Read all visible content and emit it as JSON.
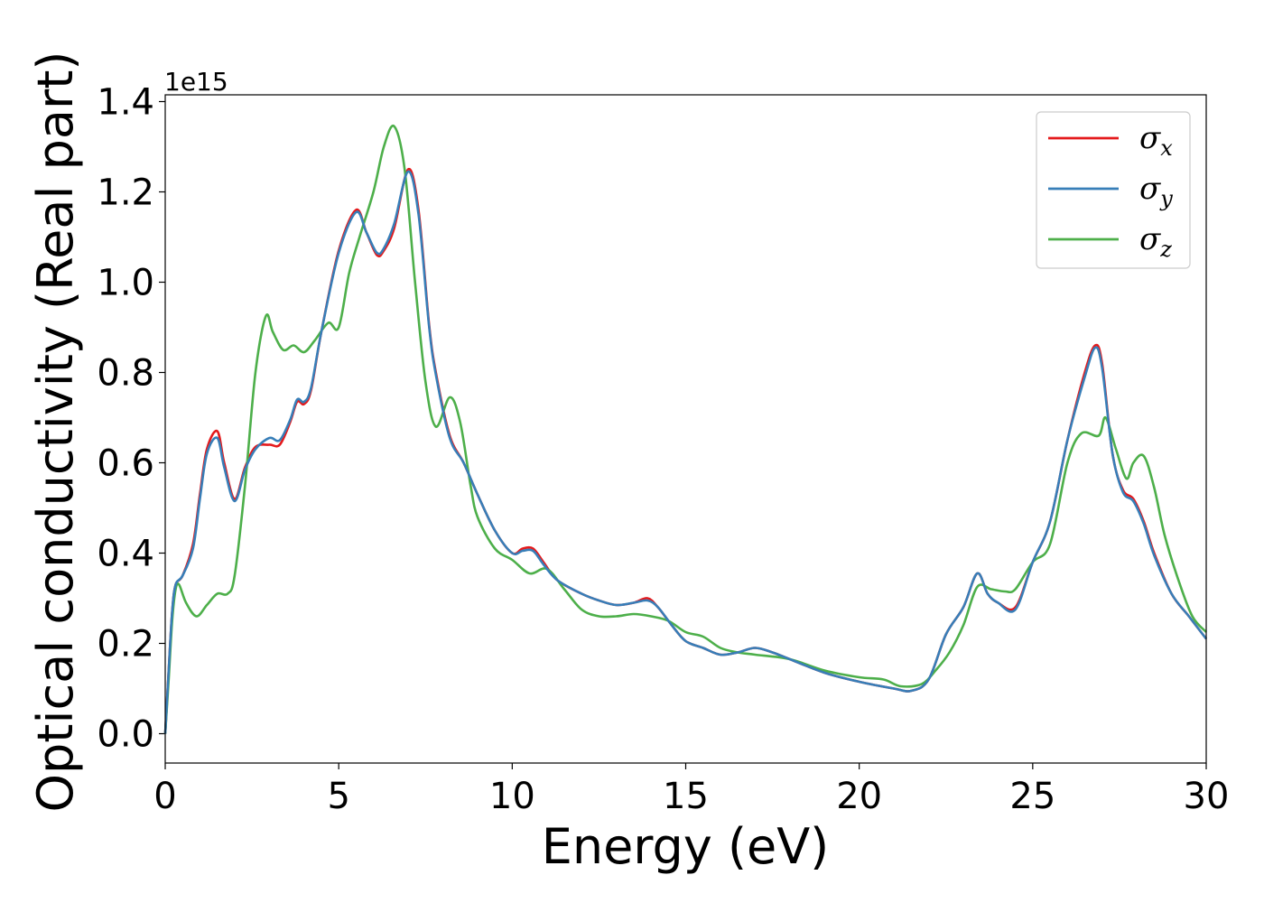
{
  "chart_data": {
    "type": "line",
    "title": "",
    "xlabel": "Energy (eV)",
    "ylabel": "Optical conductivity (Real part)",
    "y_offset_text": "1e15",
    "xlim": [
      0,
      30
    ],
    "ylim": [
      -0.065,
      1.415
    ],
    "xticks": [
      0,
      5,
      10,
      15,
      20,
      25,
      30
    ],
    "xtick_labels": [
      "0",
      "5",
      "10",
      "15",
      "20",
      "25",
      "30"
    ],
    "yticks": [
      0.0,
      0.2,
      0.4,
      0.6,
      0.8,
      1.0,
      1.2,
      1.4
    ],
    "ytick_labels": [
      "0.0",
      "0.2",
      "0.4",
      "0.6",
      "0.8",
      "1.0",
      "1.2",
      "1.4"
    ],
    "grid": false,
    "legend_position": "top-right",
    "series": [
      {
        "name": "σ_x",
        "symbol": "σ",
        "subscript": "x",
        "color": "#e41a1c",
        "x": [
          0,
          0.1,
          0.2,
          0.3,
          0.5,
          0.8,
          1.0,
          1.2,
          1.5,
          1.7,
          2.0,
          2.3,
          2.6,
          3.0,
          3.3,
          3.6,
          3.8,
          4.0,
          4.2,
          4.5,
          5.0,
          5.5,
          5.8,
          6.1,
          6.3,
          6.6,
          7.0,
          7.3,
          7.6,
          7.8,
          8.2,
          8.6,
          9.0,
          9.5,
          10.0,
          10.3,
          10.6,
          10.9,
          11.3,
          12.0,
          12.5,
          13.0,
          13.5,
          13.9,
          14.2,
          14.6,
          15.0,
          15.5,
          16.0,
          16.5,
          17.0,
          17.5,
          18.0,
          19.0,
          20.0,
          21.0,
          21.5,
          22.0,
          22.5,
          23.0,
          23.4,
          23.7,
          24.0,
          24.5,
          25.0,
          25.5,
          26.0,
          26.5,
          26.8,
          27.0,
          27.3,
          27.6,
          27.9,
          28.2,
          28.5,
          29.0,
          29.5,
          30.0
        ],
        "values": [
          0.0,
          0.14,
          0.27,
          0.33,
          0.35,
          0.42,
          0.53,
          0.63,
          0.67,
          0.6,
          0.52,
          0.59,
          0.635,
          0.64,
          0.64,
          0.69,
          0.735,
          0.73,
          0.76,
          0.89,
          1.07,
          1.16,
          1.11,
          1.06,
          1.07,
          1.12,
          1.25,
          1.16,
          0.91,
          0.8,
          0.66,
          0.6,
          0.53,
          0.45,
          0.4,
          0.41,
          0.41,
          0.38,
          0.34,
          0.31,
          0.295,
          0.285,
          0.29,
          0.3,
          0.28,
          0.24,
          0.205,
          0.19,
          0.175,
          0.18,
          0.19,
          0.18,
          0.165,
          0.135,
          0.115,
          0.1,
          0.095,
          0.12,
          0.22,
          0.28,
          0.355,
          0.31,
          0.29,
          0.28,
          0.38,
          0.47,
          0.65,
          0.8,
          0.86,
          0.82,
          0.62,
          0.54,
          0.52,
          0.47,
          0.4,
          0.31,
          0.26,
          0.21
        ]
      },
      {
        "name": "σ_y",
        "symbol": "σ",
        "subscript": "y",
        "color": "#377eb8",
        "x": [
          0,
          0.1,
          0.2,
          0.3,
          0.5,
          0.8,
          1.0,
          1.2,
          1.5,
          1.7,
          2.0,
          2.3,
          2.6,
          3.0,
          3.3,
          3.6,
          3.8,
          4.0,
          4.2,
          4.5,
          5.0,
          5.5,
          5.8,
          6.1,
          6.3,
          6.6,
          7.0,
          7.3,
          7.6,
          7.8,
          8.2,
          8.6,
          9.0,
          9.5,
          10.0,
          10.3,
          10.6,
          10.9,
          11.3,
          12.0,
          12.5,
          13.0,
          13.5,
          13.9,
          14.2,
          14.6,
          15.0,
          15.5,
          16.0,
          16.5,
          17.0,
          17.5,
          18.0,
          19.0,
          20.0,
          21.0,
          21.5,
          22.0,
          22.5,
          23.0,
          23.4,
          23.7,
          24.0,
          24.5,
          25.0,
          25.5,
          26.0,
          26.5,
          26.8,
          27.0,
          27.3,
          27.6,
          27.9,
          28.2,
          28.5,
          29.0,
          29.5,
          30.0
        ],
        "values": [
          0.0,
          0.14,
          0.27,
          0.33,
          0.35,
          0.41,
          0.52,
          0.62,
          0.655,
          0.59,
          0.515,
          0.585,
          0.63,
          0.655,
          0.65,
          0.695,
          0.74,
          0.735,
          0.765,
          0.89,
          1.065,
          1.155,
          1.11,
          1.065,
          1.075,
          1.13,
          1.245,
          1.15,
          0.905,
          0.795,
          0.655,
          0.6,
          0.53,
          0.45,
          0.4,
          0.405,
          0.405,
          0.375,
          0.34,
          0.31,
          0.295,
          0.285,
          0.29,
          0.295,
          0.28,
          0.24,
          0.205,
          0.19,
          0.175,
          0.18,
          0.19,
          0.18,
          0.165,
          0.135,
          0.115,
          0.1,
          0.095,
          0.12,
          0.22,
          0.28,
          0.355,
          0.31,
          0.29,
          0.275,
          0.38,
          0.47,
          0.65,
          0.79,
          0.855,
          0.81,
          0.62,
          0.535,
          0.515,
          0.465,
          0.395,
          0.31,
          0.26,
          0.21
        ]
      },
      {
        "name": "σ_z",
        "symbol": "σ",
        "subscript": "z",
        "color": "#4daf4a",
        "x": [
          0,
          0.1,
          0.2,
          0.3,
          0.4,
          0.6,
          0.9,
          1.2,
          1.5,
          1.8,
          2.0,
          2.3,
          2.6,
          2.9,
          3.1,
          3.4,
          3.7,
          4.0,
          4.3,
          4.7,
          5.0,
          5.3,
          5.6,
          6.0,
          6.3,
          6.6,
          6.9,
          7.2,
          7.5,
          7.8,
          8.2,
          8.5,
          8.8,
          9.0,
          9.5,
          10.0,
          10.5,
          11.0,
          11.5,
          12.0,
          12.5,
          13.0,
          13.5,
          14.0,
          14.5,
          15.0,
          15.5,
          16.0,
          16.5,
          17.0,
          18.0,
          19.0,
          20.0,
          20.7,
          21.2,
          21.8,
          22.2,
          22.6,
          23.0,
          23.4,
          23.8,
          24.2,
          24.5,
          25.0,
          25.5,
          26.0,
          26.4,
          26.9,
          27.1,
          27.4,
          27.7,
          27.9,
          28.2,
          28.5,
          28.8,
          29.2,
          29.6,
          30.0
        ],
        "values": [
          0.0,
          0.12,
          0.25,
          0.32,
          0.33,
          0.29,
          0.26,
          0.285,
          0.31,
          0.31,
          0.35,
          0.55,
          0.8,
          0.925,
          0.89,
          0.85,
          0.86,
          0.845,
          0.87,
          0.91,
          0.9,
          1.02,
          1.1,
          1.2,
          1.3,
          1.345,
          1.25,
          1.0,
          0.78,
          0.68,
          0.745,
          0.69,
          0.55,
          0.48,
          0.41,
          0.385,
          0.355,
          0.365,
          0.32,
          0.275,
          0.26,
          0.26,
          0.265,
          0.26,
          0.25,
          0.225,
          0.215,
          0.19,
          0.18,
          0.175,
          0.165,
          0.14,
          0.125,
          0.12,
          0.105,
          0.11,
          0.14,
          0.18,
          0.24,
          0.325,
          0.32,
          0.315,
          0.32,
          0.38,
          0.42,
          0.6,
          0.665,
          0.66,
          0.7,
          0.63,
          0.565,
          0.6,
          0.615,
          0.545,
          0.44,
          0.34,
          0.26,
          0.225
        ]
      }
    ]
  }
}
